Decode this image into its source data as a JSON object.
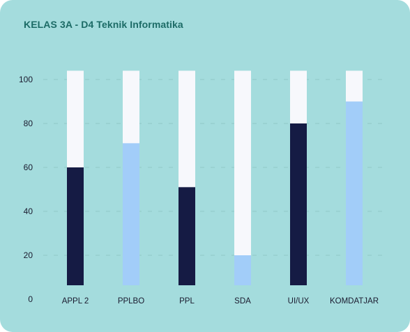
{
  "card": {
    "title": "KELAS 3A - D4 Teknik Informatika"
  },
  "colors": {
    "background": "#a4dcdd",
    "title": "#1c6b66",
    "track": "#f7f8fc",
    "dark": "#151b44",
    "light": "#a2cdf9",
    "grid": "#8fc9c7",
    "text": "#1a1a2e"
  },
  "chart_data": {
    "type": "bar",
    "title": "KELAS 3A - D4 Teknik Informatika",
    "categories": [
      "APPL 2",
      "PPLBO",
      "PPL",
      "SDA",
      "UI/UX",
      "KOMDATJAR"
    ],
    "values": [
      60,
      71,
      51,
      20,
      80,
      90
    ],
    "bar_colors": [
      "dark",
      "light",
      "dark",
      "light",
      "dark",
      "light"
    ],
    "track_max": 104,
    "ylim": [
      0,
      100
    ],
    "yticks": [
      0,
      20,
      40,
      60,
      80,
      100
    ],
    "grid": true,
    "xlabel": "",
    "ylabel": ""
  }
}
